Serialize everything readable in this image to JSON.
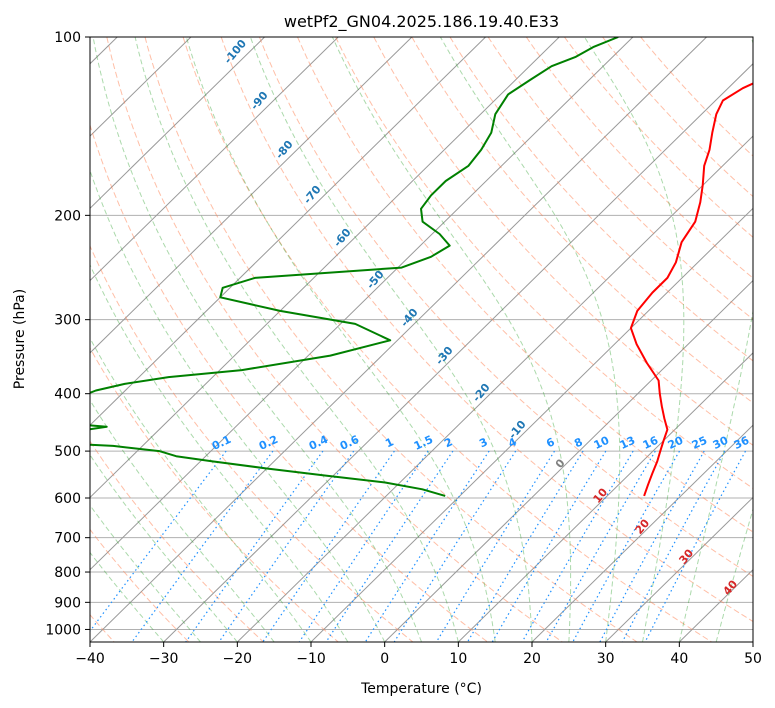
{
  "chart_data": {
    "type": "line",
    "title": "wetPf2_GN04.2025.186.19.40.E33",
    "xlabel": "Temperature (°C)",
    "ylabel": "Pressure (hPa)",
    "xlim": [
      -40,
      50
    ],
    "ylim": [
      1050,
      100
    ],
    "y_scale": "log",
    "x_ticks": [
      -40,
      -30,
      -20,
      -10,
      0,
      10,
      20,
      30,
      40,
      50
    ],
    "x_tick_labels": [
      "−40",
      "−30",
      "−20",
      "−10",
      "0",
      "10",
      "20",
      "30",
      "40",
      "50"
    ],
    "y_ticks": [
      100,
      200,
      300,
      400,
      500,
      600,
      700,
      800,
      900,
      1000
    ],
    "y_tick_labels": [
      "100",
      "200",
      "300",
      "400",
      "500",
      "600",
      "700",
      "800",
      "900",
      "1000"
    ],
    "grid": true,
    "series": [
      {
        "color": "#ff0000",
        "p": [
          100,
          105,
          110,
          116,
          122,
          128,
          135,
          145,
          155,
          165,
          178,
          190,
          205,
          222,
          240,
          255,
          270,
          290,
          310,
          330,
          355,
          380,
          400,
          420,
          440,
          460,
          480,
          500,
          520,
          545,
          570,
          595
        ],
        "x": [
          -20,
          -22,
          -24,
          -26,
          -28,
          -29,
          -28,
          -26,
          -24,
          -22.5,
          -20,
          -18,
          -16,
          -15,
          -13,
          -12,
          -12,
          -11.5,
          -10,
          -7,
          -3,
          1,
          3,
          5,
          7,
          9,
          10,
          11,
          12,
          13,
          14,
          15
        ]
      },
      {
        "color": "#008000",
        "p": [
          100,
          104,
          108,
          112,
          118,
          125,
          135,
          145,
          155,
          165,
          175,
          185,
          195,
          205,
          215,
          225,
          235,
          245,
          255,
          265,
          275,
          290,
          305,
          325,
          345,
          365,
          375,
          385,
          395,
          410,
          425,
          440,
          455,
          470,
          480,
          490,
          500,
          510,
          520,
          535,
          550,
          565,
          580,
          595
        ],
        "x": [
          -52,
          -54,
          -55,
          -57,
          -58,
          -59,
          -58,
          -56,
          -55,
          -54.5,
          -55.5,
          -55.5,
          -55,
          -53,
          -49,
          -46,
          -47,
          -49.5,
          -68,
          -71,
          -70,
          -60,
          -48,
          -41,
          -47,
          -57,
          -66,
          -71,
          -74,
          -76,
          -79,
          -82,
          -67.5,
          -74,
          -79,
          -64,
          -57,
          -54,
          -48.5,
          -40,
          -31,
          -22,
          -16,
          -12
        ]
      }
    ],
    "dry_adiabats": [
      -100,
      -90,
      -80,
      -70,
      -60,
      -50,
      -40,
      -30,
      -20,
      -10,
      0,
      10,
      20,
      30,
      40
    ],
    "mixing_ratio_labels": [
      "0.1",
      "0.2",
      "0.4",
      "0.6",
      "1",
      "1.5",
      "2",
      "3",
      "4",
      "6",
      "8",
      "10",
      "13",
      "16",
      "20",
      "25",
      "30",
      "36"
    ],
    "mixing_ratios": [
      0.1,
      0.2,
      0.4,
      0.6,
      1,
      1.5,
      2,
      3,
      4,
      6,
      8,
      10,
      13,
      16,
      20,
      25,
      30,
      36
    ],
    "moist_adiabat_labels": [
      "0",
      "10",
      "20",
      "30",
      "40"
    ],
    "colors": {
      "temperature": "#ff0000",
      "dewpoint": "#008000",
      "dry_adiabat": "#ff7f50",
      "moist_adiabat": "#2ca02c",
      "mixing_ratio": "#1e90ff",
      "adiabat_label": "#1f77b4",
      "mixing_label": "#1e90ff",
      "moist_label": "#d62728",
      "zero_label": "#808080",
      "skewed_isotherm": "#999999"
    }
  }
}
